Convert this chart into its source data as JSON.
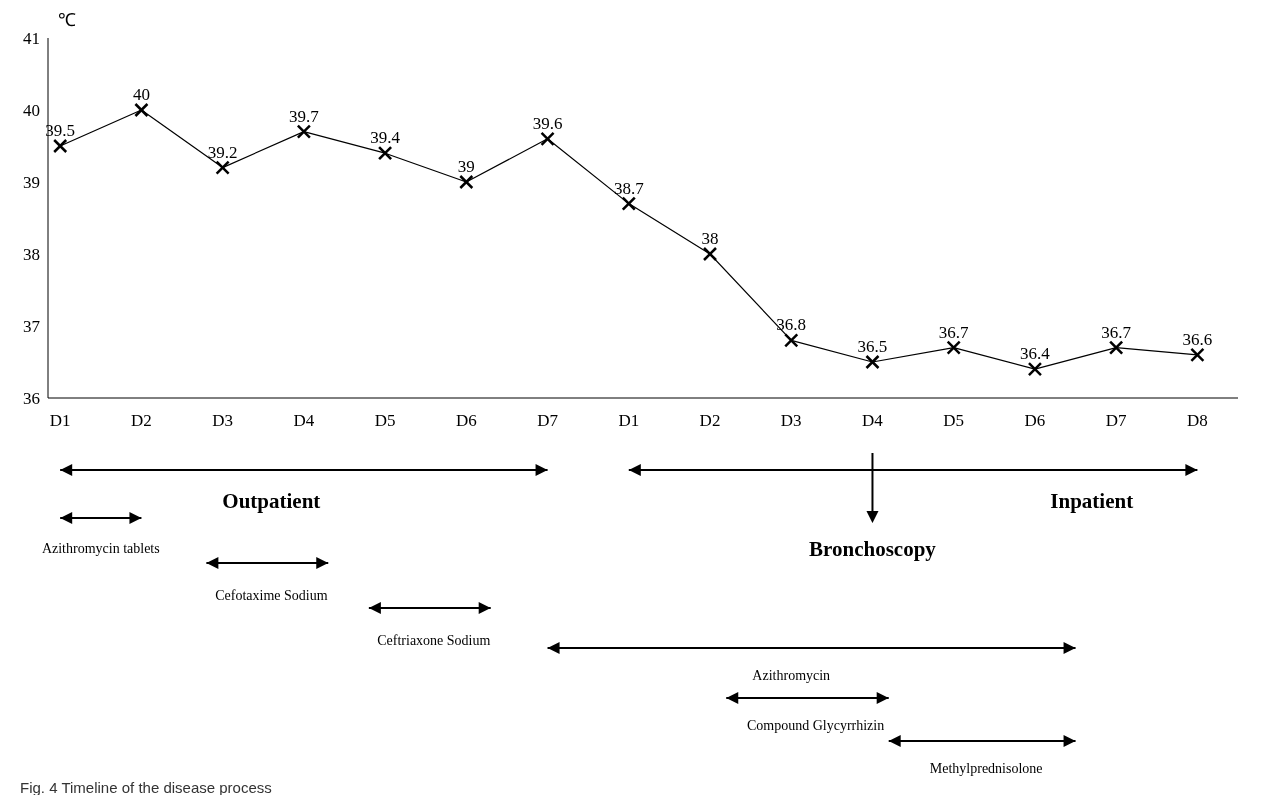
{
  "chart_data": {
    "type": "line",
    "title": "Fig. 4 Timeline of the disease process",
    "ylabel": "℃",
    "categories": [
      "D1",
      "D2",
      "D3",
      "D4",
      "D5",
      "D6",
      "D7",
      "D1",
      "D2",
      "D3",
      "D4",
      "D5",
      "D6",
      "D7",
      "D8"
    ],
    "values": [
      39.5,
      40,
      39.2,
      39.7,
      39.4,
      39,
      39.6,
      38.7,
      38,
      36.8,
      36.5,
      36.7,
      36.4,
      36.7,
      36.6
    ],
    "color": "#000000",
    "ylim": [
      36,
      41
    ],
    "yticks": [
      36,
      37,
      38,
      39,
      40,
      41
    ],
    "grid": false,
    "marker": "cross",
    "line_style": "solid",
    "data_labels": true,
    "annotations": [
      "Outpatient",
      "Inpatient",
      "Bronchoscopy",
      "Azithromycin tablets",
      "Cefotaxime Sodium",
      "Ceftriaxone Sodium",
      "Azithromycin",
      "Compound Glycyrrhizin",
      "Methylprednisolone"
    ]
  }
}
